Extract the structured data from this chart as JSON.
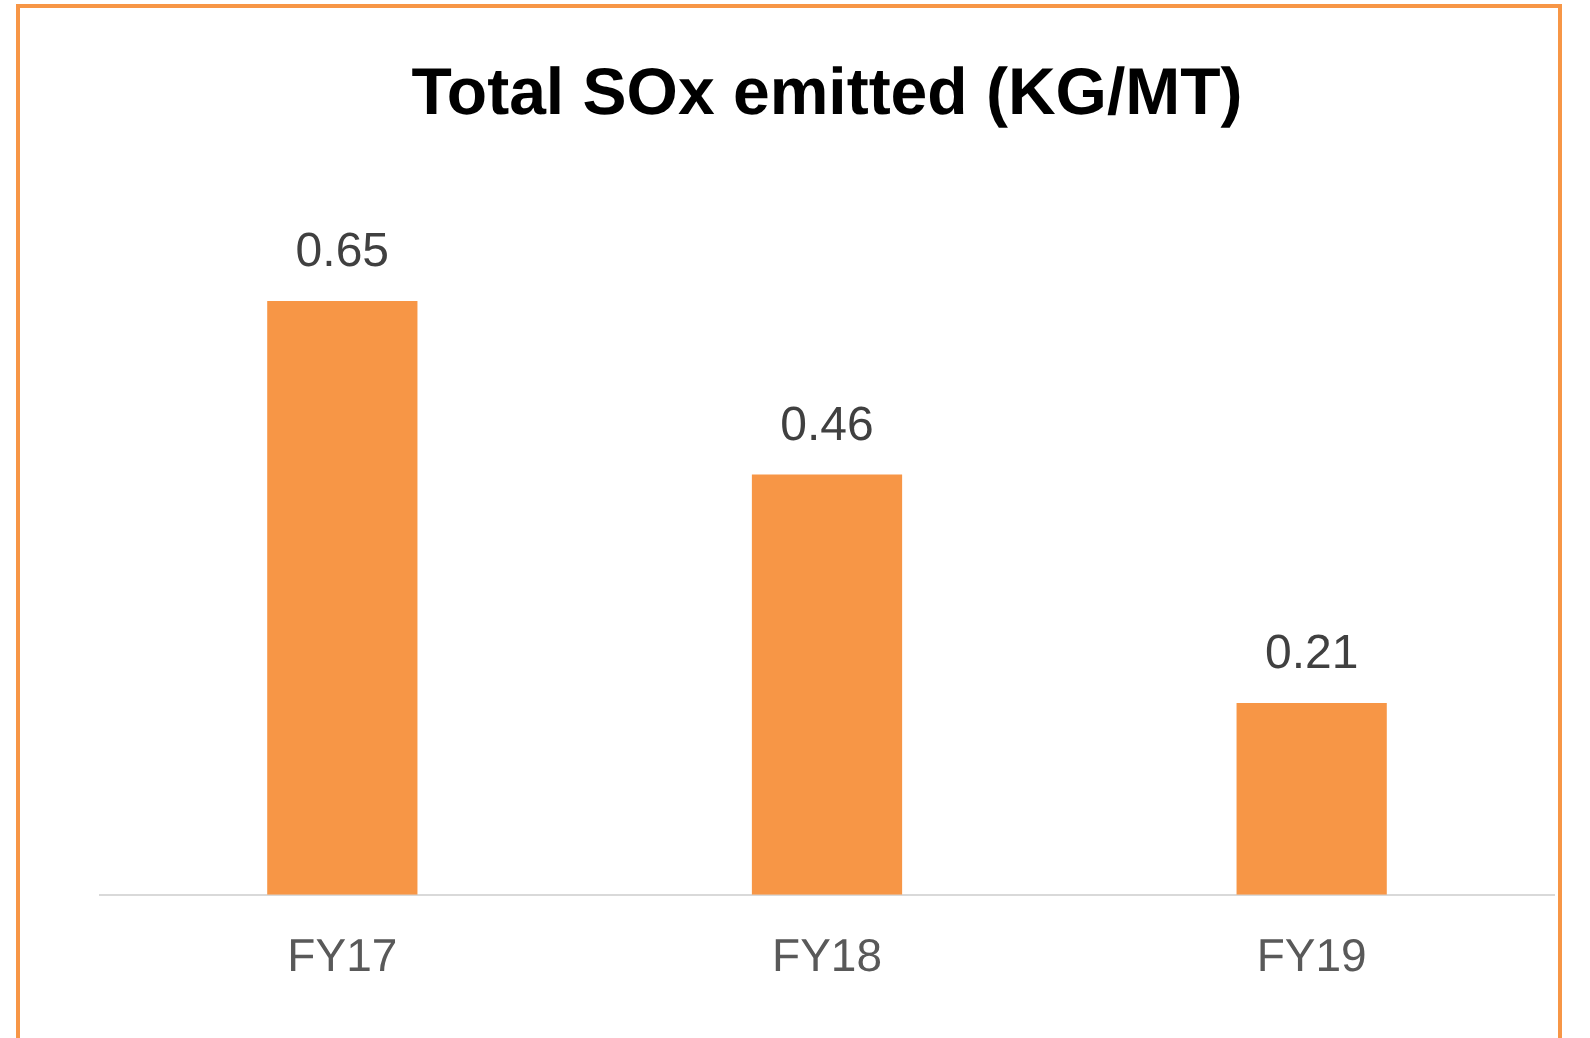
{
  "chart_data": {
    "type": "bar",
    "title": "Total SOx emitted (KG/MT)",
    "categories": [
      "FY17",
      "FY18",
      "FY19"
    ],
    "values": [
      0.65,
      0.46,
      0.21
    ],
    "color": "#f79646",
    "data_labels": true,
    "grid": false,
    "legend": false,
    "tick_labels": "x"
  }
}
